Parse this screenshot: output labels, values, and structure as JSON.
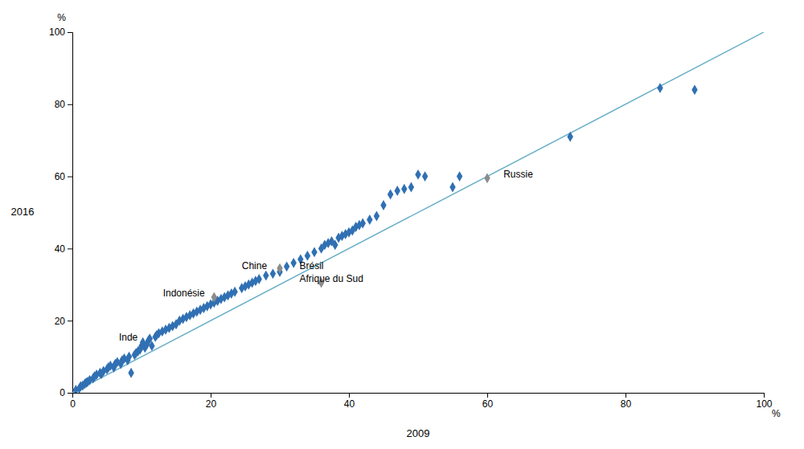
{
  "chart_data": {
    "type": "scatter",
    "xlabel": "2009",
    "ylabel": "2016",
    "x_unit": "%",
    "y_unit": "%",
    "xlim": [
      0,
      100
    ],
    "ylim": [
      0,
      100
    ],
    "xticks": [
      0,
      20,
      40,
      60,
      80,
      100
    ],
    "yticks": [
      0,
      20,
      40,
      60,
      80,
      100
    ],
    "grid": false,
    "series": [
      {
        "type": "line",
        "color": "#6ab0c8",
        "line_style": "solid",
        "x": [
          0,
          100
        ],
        "values": [
          0,
          100
        ]
      },
      {
        "type": "scatter",
        "color": "#3070B3",
        "marker": "diamond",
        "x": [
          0.5,
          1.0,
          1.2,
          1.5,
          1.8,
          2.0,
          2.2,
          2.5,
          3.0,
          3.2,
          3.5,
          4.0,
          4.2,
          4.5,
          5.0,
          5.2,
          5.5,
          6.0,
          6.2,
          6.5,
          7.0,
          7.2,
          7.5,
          8.0,
          8.2,
          8.5,
          9.0,
          9.2,
          9.5,
          9.8,
          10.0,
          10.2,
          10.5,
          10.8,
          11.0,
          11.2,
          11.5,
          12.0,
          12.2,
          12.5,
          13.0,
          13.5,
          14.0,
          14.5,
          15.0,
          15.5,
          16.0,
          16.5,
          17.0,
          17.5,
          18.0,
          18.5,
          19.0,
          19.5,
          20.0,
          20.5,
          21.0,
          21.5,
          22.0,
          22.5,
          23.0,
          23.5,
          24.5,
          25.0,
          25.5,
          26.0,
          26.5,
          27.0,
          28.0,
          29.0,
          30.0,
          31.0,
          32.0,
          33.0,
          34.0,
          35.0,
          36.0,
          36.5,
          37.0,
          37.5,
          38.0,
          38.5,
          39.0,
          39.5,
          40.0,
          40.5,
          41.0,
          41.5,
          42.0,
          43.0,
          44.0,
          45.0,
          46.0,
          47.0,
          48.0,
          49.0,
          50.0,
          51.0,
          55.0,
          56.0,
          72.0,
          85.0,
          90.0
        ],
        "values": [
          0.8,
          1.2,
          1.8,
          2.0,
          2.5,
          2.8,
          3.0,
          3.5,
          4.0,
          4.5,
          5.0,
          5.5,
          5.2,
          6.0,
          6.5,
          7.0,
          7.5,
          7.0,
          8.0,
          8.5,
          8.0,
          9.0,
          9.5,
          9.0,
          10.0,
          5.5,
          10.5,
          11.0,
          11.5,
          12.0,
          13.0,
          14.0,
          12.5,
          13.5,
          14.5,
          15.0,
          13.0,
          15.5,
          16.0,
          16.5,
          17.0,
          17.5,
          18.0,
          18.5,
          19.0,
          20.0,
          20.5,
          21.0,
          21.5,
          22.0,
          22.5,
          23.0,
          23.5,
          24.0,
          24.5,
          25.0,
          25.5,
          26.0,
          26.5,
          27.0,
          27.5,
          28.0,
          29.0,
          29.5,
          30.0,
          30.5,
          31.0,
          31.5,
          32.5,
          33.0,
          33.5,
          35.0,
          36.0,
          37.0,
          38.0,
          39.0,
          40.0,
          41.0,
          41.5,
          42.0,
          41.0,
          43.0,
          43.5,
          44.0,
          44.5,
          45.0,
          46.0,
          46.5,
          47.0,
          48.0,
          49.0,
          52.0,
          55.0,
          56.0,
          56.5,
          57.0,
          60.5,
          60.0,
          57.0,
          60.0,
          71.0,
          84.5,
          84.0
        ]
      },
      {
        "type": "scatter",
        "color": "#8C8C8C",
        "marker": "diamond",
        "x": [
          20.5,
          30.0,
          36.0,
          60.0
        ],
        "values": [
          26.5,
          34.5,
          30.5,
          59.5
        ]
      }
    ],
    "annotations": [
      {
        "text": "Inde",
        "x": 9.8,
        "y": 15.2,
        "align": "right"
      },
      {
        "text": "Indonésie",
        "x": 19.5,
        "y": 27.5,
        "align": "right"
      },
      {
        "text": "Chine",
        "x": 28.5,
        "y": 35.0,
        "align": "right"
      },
      {
        "text": "Brésil",
        "x": 32.5,
        "y": 35.0,
        "align": "left"
      },
      {
        "text": "Afrique du Sud",
        "x": 32.5,
        "y": 31.5,
        "align": "left"
      },
      {
        "text": "Russie",
        "x": 62.0,
        "y": 60.5,
        "align": "left"
      }
    ]
  }
}
